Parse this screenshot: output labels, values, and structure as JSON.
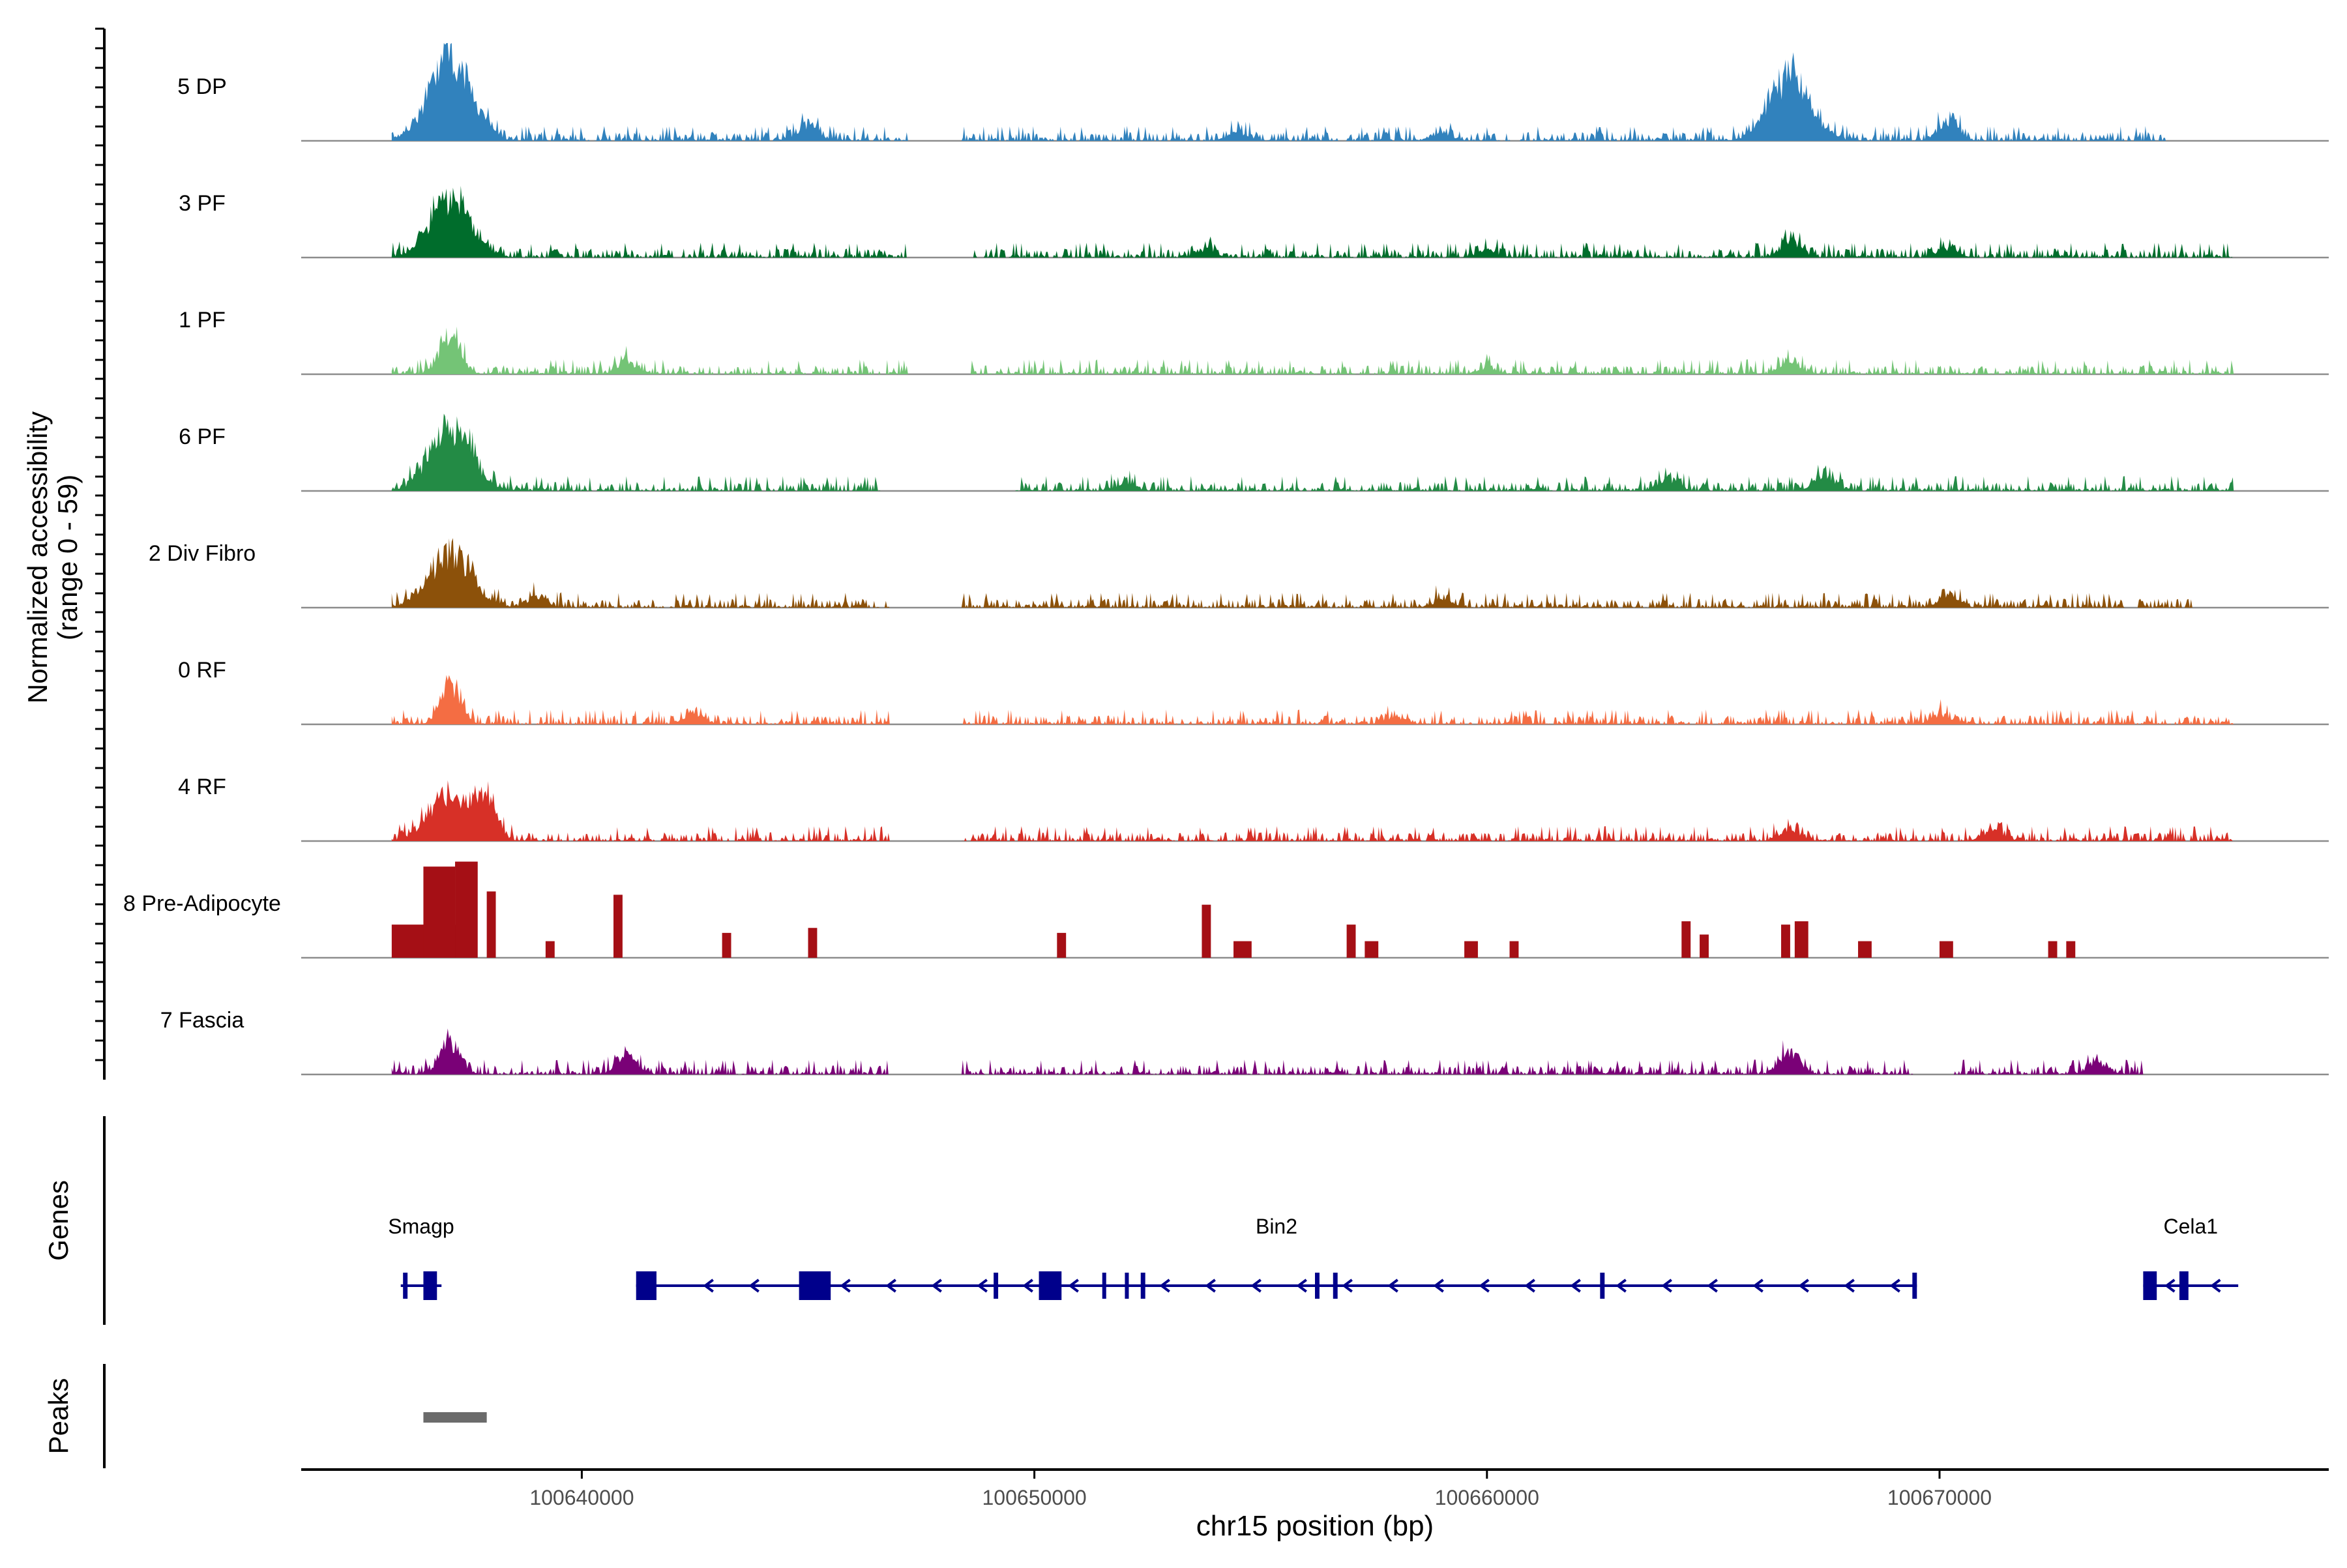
{
  "chart_data": {
    "type": "area",
    "title": "",
    "ylabel_line1": "Normalized accessibility",
    "ylabel_line2": "(range 0 - 59)",
    "xlabel": "chr15 position (bp)",
    "chromosome": "chr15",
    "xlim": [
      100633800,
      100678600
    ],
    "ylim": [
      0,
      59
    ],
    "x_ticks": [
      100640000,
      100650000,
      100660000,
      100670000
    ],
    "x_tick_labels": [
      "100640000",
      "100650000",
      "100660000",
      "100670000"
    ],
    "series": [
      {
        "name": "5 DP",
        "color": "#3182bd",
        "peaks": [
          [
            100637100,
            59
          ],
          [
            100645000,
            10
          ],
          [
            100666700,
            44
          ],
          [
            100670200,
            14
          ],
          [
            100654500,
            6
          ],
          [
            100659000,
            6
          ]
        ],
        "range": [
          100635800,
          100675000
        ],
        "gaps": [
          [
            100647200,
            100648400
          ]
        ]
      },
      {
        "name": "3 PF",
        "color": "#006d2c",
        "peaks": [
          [
            100637100,
            40
          ],
          [
            100666700,
            11
          ],
          [
            100670200,
            6
          ],
          [
            100653800,
            5
          ],
          [
            100660000,
            5
          ]
        ],
        "range": [
          100635800,
          100676500
        ],
        "gaps": [
          [
            100647200,
            100648600
          ]
        ]
      },
      {
        "name": "1 PF",
        "color": "#74c476",
        "peaks": [
          [
            100637100,
            28
          ],
          [
            100641000,
            8
          ],
          [
            100666700,
            8
          ],
          [
            100660000,
            4
          ]
        ],
        "range": [
          100635800,
          100676500
        ],
        "gaps": [
          [
            100647200,
            100648600
          ]
        ]
      },
      {
        "name": "6 PF",
        "color": "#238b45",
        "peaks": [
          [
            100637100,
            44
          ],
          [
            100664000,
            8
          ],
          [
            100667500,
            10
          ],
          [
            100652000,
            5
          ]
        ],
        "range": [
          100635800,
          100676500
        ],
        "gaps": [
          [
            100646600,
            100649500
          ]
        ]
      },
      {
        "name": "2 Div Fibro",
        "color": "#8c510a",
        "peaks": [
          [
            100637100,
            38
          ],
          [
            100639000,
            7
          ],
          [
            100670200,
            8
          ],
          [
            100659000,
            5
          ]
        ],
        "range": [
          100635800,
          100675600
        ],
        "gaps": [
          [
            100646800,
            100648400
          ],
          [
            100674100,
            100674400
          ]
        ]
      },
      {
        "name": "0 RF",
        "color": "#f46d43",
        "peaks": [
          [
            100637100,
            28
          ],
          [
            100642500,
            7
          ],
          [
            100658000,
            5
          ],
          [
            100670000,
            6
          ]
        ],
        "range": [
          100635800,
          100676500
        ],
        "gaps": [
          [
            100646800,
            100648400
          ]
        ]
      },
      {
        "name": "4 RF",
        "color": "#d73027",
        "peaks": [
          [
            100637100,
            32
          ],
          [
            100637900,
            26
          ],
          [
            100666700,
            9
          ],
          [
            100671200,
            8
          ]
        ],
        "range": [
          100635800,
          100676500
        ],
        "gaps": [
          [
            100646800,
            100648400
          ]
        ]
      },
      {
        "name": "8 Pre-Adipocyte",
        "color": "#a50f15",
        "blocks": [
          [
            100635800,
            100637400,
            20
          ],
          [
            100636500,
            100637200,
            55
          ],
          [
            100637200,
            100637700,
            58
          ],
          [
            100637900,
            100638100,
            40
          ],
          [
            100639200,
            100639400,
            10
          ],
          [
            100640700,
            100640900,
            38
          ],
          [
            100643100,
            100643300,
            15
          ],
          [
            100645000,
            100645200,
            18
          ],
          [
            100650500,
            100650700,
            15
          ],
          [
            100653700,
            100653900,
            32
          ],
          [
            100654400,
            100654800,
            10
          ],
          [
            100656900,
            100657100,
            20
          ],
          [
            100657300,
            100657600,
            10
          ],
          [
            100659500,
            100659800,
            10
          ],
          [
            100660500,
            100660700,
            10
          ],
          [
            100664300,
            100664500,
            22
          ],
          [
            100664700,
            100664900,
            14
          ],
          [
            100666500,
            100666700,
            20
          ],
          [
            100666800,
            100667100,
            22
          ],
          [
            100668200,
            100668500,
            10
          ],
          [
            100670000,
            100670300,
            10
          ],
          [
            100672400,
            100672600,
            10
          ],
          [
            100672800,
            100673000,
            10
          ]
        ]
      },
      {
        "name": "7 Fascia",
        "color": "#7a0177",
        "peaks": [
          [
            100637100,
            22
          ],
          [
            100641000,
            12
          ],
          [
            100666700,
            16
          ],
          [
            100673500,
            8
          ]
        ],
        "range": [
          100635800,
          100674500
        ],
        "gaps": [
          [
            100646800,
            100648400
          ],
          [
            100669400,
            100670300
          ]
        ]
      }
    ],
    "genes_track_label": "Genes",
    "peaks_track_label": "Peaks",
    "genes": [
      {
        "name": "Smagp",
        "start": 100636000,
        "end": 100636900,
        "strand": "-",
        "exons": [
          [
            100636050,
            100636150,
            "utr"
          ],
          [
            100636500,
            100636800,
            "cds"
          ]
        ]
      },
      {
        "name": "Bin2",
        "start": 100641200,
        "end": 100669500,
        "strand": "-",
        "exons": [
          [
            100641200,
            100641650,
            "cds"
          ],
          [
            100644800,
            100645500,
            "cds"
          ],
          [
            100649100,
            100649200,
            "utr"
          ],
          [
            100650100,
            100650600,
            "cds"
          ],
          [
            100651500,
            100651550,
            "utr"
          ],
          [
            100652000,
            100652050,
            "utr"
          ],
          [
            100652350,
            100652450,
            "utr"
          ],
          [
            100656200,
            100656300,
            "utr"
          ],
          [
            100656600,
            100656700,
            "utr"
          ],
          [
            100662500,
            100662600,
            "utr"
          ],
          [
            100669400,
            100669500,
            "utr"
          ]
        ]
      },
      {
        "name": "Cela1",
        "start": 100674500,
        "end": 100676600,
        "strand": "-",
        "exons": [
          [
            100674500,
            100674800,
            "cds"
          ],
          [
            100675300,
            100675500,
            "cds"
          ]
        ]
      }
    ],
    "peaks": [
      [
        100636500,
        100637900
      ]
    ]
  }
}
